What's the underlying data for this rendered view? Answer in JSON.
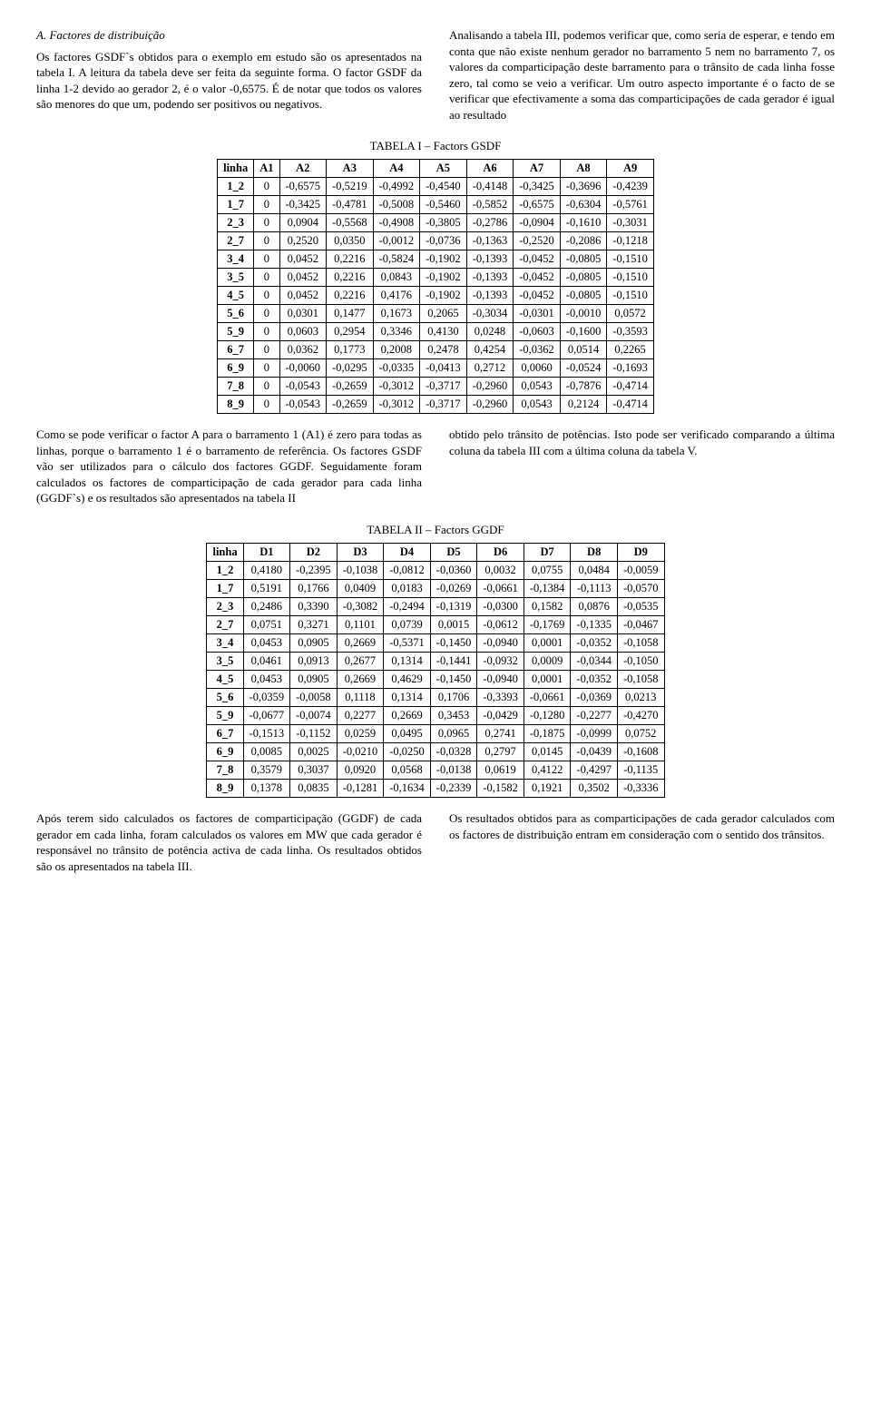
{
  "top": {
    "left": {
      "heading": "A. Factores de distribuição",
      "para": "Os factores GSDF`s obtidos para o exemplo em estudo são os apresentados na tabela I. A leitura da tabela deve ser feita da seguinte forma. O factor GSDF da linha 1-2 devido ao gerador 2, é o valor -0,6575. É de notar que todos os valores são menores do que um, podendo ser positivos ou negativos."
    },
    "right": {
      "para": "Analisando a tabela III, podemos verificar que, como seria de esperar, e tendo em conta que não existe nenhum gerador no barramento 5 nem no barramento 7, os valores da comparticipação deste barramento para o trânsito de cada linha fosse zero, tal como se veio a verificar. Um outro aspecto importante é o facto de se verificar que efectivamente a soma das comparticipações de cada gerador é igual ao resultado"
    }
  },
  "table1": {
    "caption": "TABELA I – Factors GSDF",
    "headers": [
      "linha",
      "A1",
      "A2",
      "A3",
      "A4",
      "A5",
      "A6",
      "A7",
      "A8",
      "A9"
    ],
    "rows": [
      [
        "1_2",
        "0",
        "-0,6575",
        "-0,5219",
        "-0,4992",
        "-0,4540",
        "-0,4148",
        "-0,3425",
        "-0,3696",
        "-0,4239"
      ],
      [
        "1_7",
        "0",
        "-0,3425",
        "-0,4781",
        "-0,5008",
        "-0,5460",
        "-0,5852",
        "-0,6575",
        "-0,6304",
        "-0,5761"
      ],
      [
        "2_3",
        "0",
        "0,0904",
        "-0,5568",
        "-0,4908",
        "-0,3805",
        "-0,2786",
        "-0,0904",
        "-0,1610",
        "-0,3031"
      ],
      [
        "2_7",
        "0",
        "0,2520",
        "0,0350",
        "-0,0012",
        "-0,0736",
        "-0,1363",
        "-0,2520",
        "-0,2086",
        "-0,1218"
      ],
      [
        "3_4",
        "0",
        "0,0452",
        "0,2216",
        "-0,5824",
        "-0,1902",
        "-0,1393",
        "-0,0452",
        "-0,0805",
        "-0,1510"
      ],
      [
        "3_5",
        "0",
        "0,0452",
        "0,2216",
        "0,0843",
        "-0,1902",
        "-0,1393",
        "-0,0452",
        "-0,0805",
        "-0,1510"
      ],
      [
        "4_5",
        "0",
        "0,0452",
        "0,2216",
        "0,4176",
        "-0,1902",
        "-0,1393",
        "-0,0452",
        "-0,0805",
        "-0,1510"
      ],
      [
        "5_6",
        "0",
        "0,0301",
        "0,1477",
        "0,1673",
        "0,2065",
        "-0,3034",
        "-0,0301",
        "-0,0010",
        "0,0572"
      ],
      [
        "5_9",
        "0",
        "0,0603",
        "0,2954",
        "0,3346",
        "0,4130",
        "0,0248",
        "-0,0603",
        "-0,1600",
        "-0,3593"
      ],
      [
        "6_7",
        "0",
        "0,0362",
        "0,1773",
        "0,2008",
        "0,2478",
        "0,4254",
        "-0,0362",
        "0,0514",
        "0,2265"
      ],
      [
        "6_9",
        "0",
        "-0,0060",
        "-0,0295",
        "-0,0335",
        "-0,0413",
        "0,2712",
        "0,0060",
        "-0,0524",
        "-0,1693"
      ],
      [
        "7_8",
        "0",
        "-0,0543",
        "-0,2659",
        "-0,3012",
        "-0,3717",
        "-0,2960",
        "0,0543",
        "-0,7876",
        "-0,4714"
      ],
      [
        "8_9",
        "0",
        "-0,0543",
        "-0,2659",
        "-0,3012",
        "-0,3717",
        "-0,2960",
        "0,0543",
        "0,2124",
        "-0,4714"
      ]
    ]
  },
  "mid": {
    "left": {
      "para": "Como se pode verificar o factor A para o barramento 1 (A1) é zero para todas as linhas, porque o barramento 1 é o barramento de referência. Os factores GSDF vão ser utilizados para o cálculo dos factores GGDF. Seguidamente foram calculados os factores de comparticipação de cada gerador para cada linha (GGDF`s) e os resultados são apresentados na tabela II"
    },
    "right": {
      "para": "obtido pelo trânsito de potências. Isto pode ser verificado comparando a última coluna da tabela III com a última coluna da tabela V."
    }
  },
  "table2": {
    "caption": "TABELA II – Factors GGDF",
    "headers": [
      "linha",
      "D1",
      "D2",
      "D3",
      "D4",
      "D5",
      "D6",
      "D7",
      "D8",
      "D9"
    ],
    "rows": [
      [
        "1_2",
        "0,4180",
        "-0,2395",
        "-0,1038",
        "-0,0812",
        "-0,0360",
        "0,0032",
        "0,0755",
        "0,0484",
        "-0,0059"
      ],
      [
        "1_7",
        "0,5191",
        "0,1766",
        "0,0409",
        "0,0183",
        "-0,0269",
        "-0,0661",
        "-0,1384",
        "-0,1113",
        "-0,0570"
      ],
      [
        "2_3",
        "0,2486",
        "0,3390",
        "-0,3082",
        "-0,2494",
        "-0,1319",
        "-0,0300",
        "0,1582",
        "0,0876",
        "-0,0535"
      ],
      [
        "2_7",
        "0,0751",
        "0,3271",
        "0,1101",
        "0,0739",
        "0,0015",
        "-0,0612",
        "-0,1769",
        "-0,1335",
        "-0,0467"
      ],
      [
        "3_4",
        "0,0453",
        "0,0905",
        "0,2669",
        "-0,5371",
        "-0,1450",
        "-0,0940",
        "0,0001",
        "-0,0352",
        "-0,1058"
      ],
      [
        "3_5",
        "0,0461",
        "0,0913",
        "0,2677",
        "0,1314",
        "-0,1441",
        "-0,0932",
        "0,0009",
        "-0,0344",
        "-0,1050"
      ],
      [
        "4_5",
        "0,0453",
        "0,0905",
        "0,2669",
        "0,4629",
        "-0,1450",
        "-0,0940",
        "0,0001",
        "-0,0352",
        "-0,1058"
      ],
      [
        "5_6",
        "-0,0359",
        "-0,0058",
        "0,1118",
        "0,1314",
        "0,1706",
        "-0,3393",
        "-0,0661",
        "-0,0369",
        "0,0213"
      ],
      [
        "5_9",
        "-0,0677",
        "-0,0074",
        "0,2277",
        "0,2669",
        "0,3453",
        "-0,0429",
        "-0,1280",
        "-0,2277",
        "-0,4270"
      ],
      [
        "6_7",
        "-0,1513",
        "-0,1152",
        "0,0259",
        "0,0495",
        "0,0965",
        "0,2741",
        "-0,1875",
        "-0,0999",
        "0,0752"
      ],
      [
        "6_9",
        "0,0085",
        "0,0025",
        "-0,0210",
        "-0,0250",
        "-0,0328",
        "0,2797",
        "0,0145",
        "-0,0439",
        "-0,1608"
      ],
      [
        "7_8",
        "0,3579",
        "0,3037",
        "0,0920",
        "0,0568",
        "-0,0138",
        "0,0619",
        "0,4122",
        "-0,4297",
        "-0,1135"
      ],
      [
        "8_9",
        "0,1378",
        "0,0835",
        "-0,1281",
        "-0,1634",
        "-0,2339",
        "-0,1582",
        "0,1921",
        "0,3502",
        "-0,3336"
      ]
    ]
  },
  "bottom": {
    "left": {
      "para": "Após terem sido calculados os factores de comparticipação (GGDF) de cada gerador em cada linha, foram calculados os valores em MW que cada gerador é responsável no trânsito de potência activa de cada linha. Os resultados obtidos são os apresentados na tabela III."
    },
    "right": {
      "para": "Os resultados obtidos para as comparticipações de cada gerador calculados com os factores de distribuição entram em consideração com o sentido dos trânsitos."
    }
  },
  "style": {
    "cell_border_color": "#000000",
    "font_family": "Times New Roman",
    "font_size_body": 13,
    "font_size_table": 12.5
  }
}
